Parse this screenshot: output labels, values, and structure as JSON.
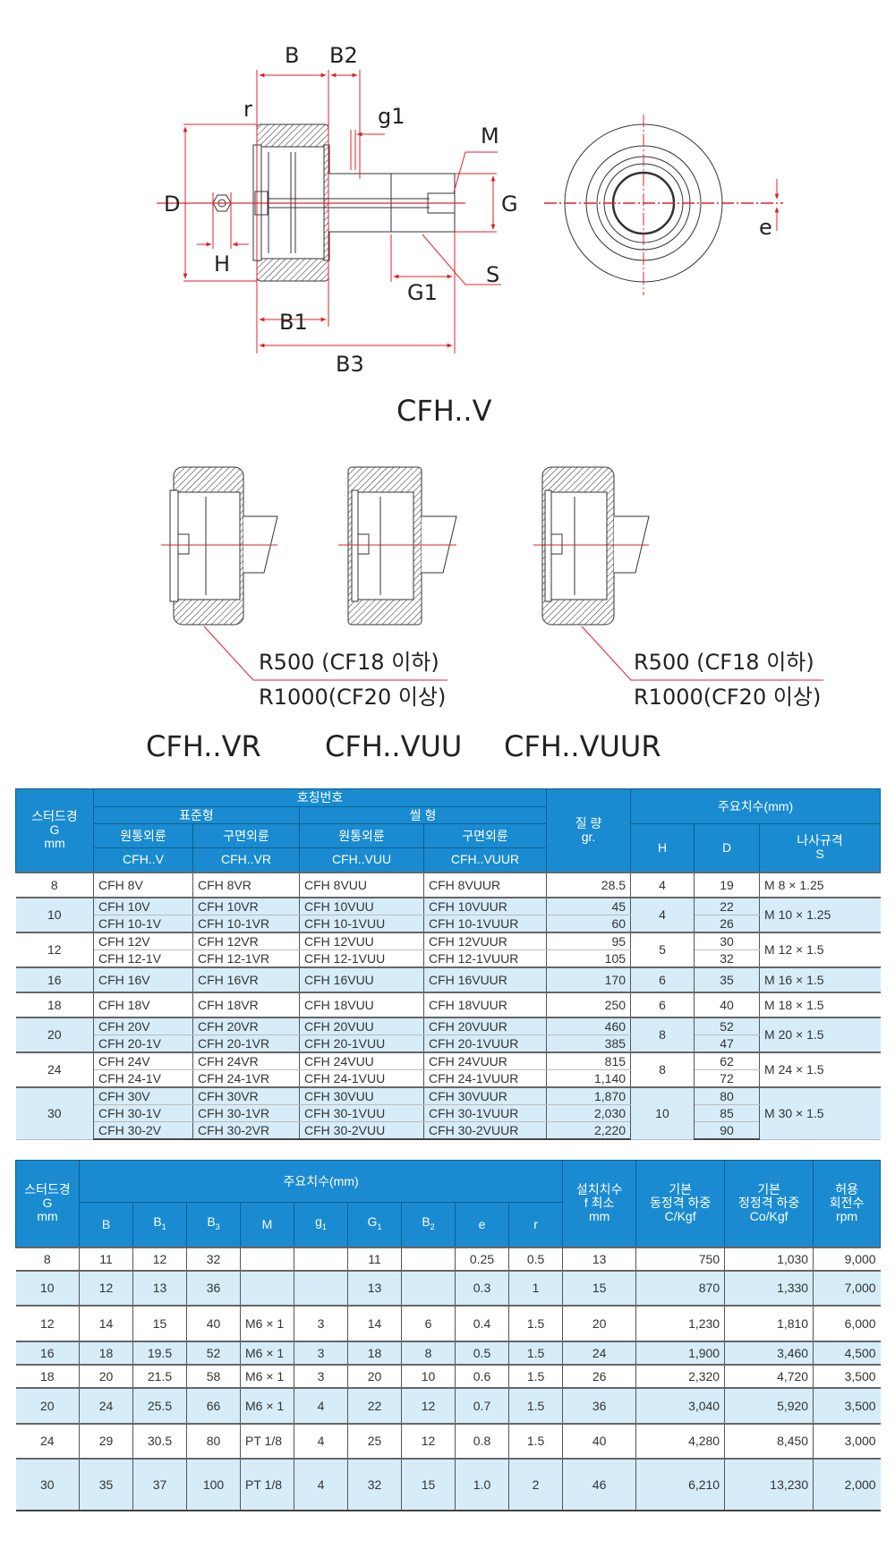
{
  "colors": {
    "header": "#1a8bd0",
    "row_alt": "#d6ecf9",
    "dimension": "#e0202a"
  },
  "diagram": {
    "labels": {
      "B": "B",
      "B2": "B2",
      "r": "r",
      "g1": "g1",
      "M": "M",
      "D": "D",
      "G": "G",
      "H": "H",
      "S": "S",
      "G1": "G1",
      "B1": "B1",
      "B3": "B3",
      "e": "e"
    },
    "title_main": "CFH..V",
    "radius_left_1": "R500  (CF18 이하)",
    "radius_left_2": "R1000(CF20 이상)",
    "radius_right_1": "R500  (CF18 이하)",
    "radius_right_2": "R1000(CF20 이상)",
    "title_vr": "CFH..VR",
    "title_vuu": "CFH..VUU",
    "title_vuur": "CFH..VUUR"
  },
  "table1": {
    "headers": {
      "stud": "스터드경\nG\nmm",
      "nominal": "호칭번호",
      "standard": "표준형",
      "sealed": "씰 형",
      "cyl1": "원통외륜",
      "sph1": "구면외륜",
      "cyl2": "원통외륜",
      "sph2": "구면외륜",
      "v": "CFH..V",
      "vr": "CFH..VR",
      "vuu": "CFH..VUU",
      "vuur": "CFH..VUUR",
      "mass": "질 량\ngr.",
      "dims": "주요치수(mm)",
      "H": "H",
      "D": "D",
      "S": "나사규격\nS"
    },
    "groups": [
      {
        "G": "8",
        "H": "4",
        "S": "M 8 × 1.25",
        "rows": [
          [
            "CFH  8V",
            "CFH  8VR",
            "CFH  8VUU",
            "CFH  8VUUR",
            "28.5",
            "19"
          ]
        ]
      },
      {
        "G": "10",
        "H": "4",
        "S": "M 10 × 1.25",
        "rows": [
          [
            "CFH  10V",
            "CFH  10VR",
            "CFH  10VUU",
            "CFH  10VUUR",
            "45",
            "22"
          ],
          [
            "CFH  10-1V",
            "CFH  10-1VR",
            "CFH  10-1VUU",
            "CFH  10-1VUUR",
            "60",
            "26"
          ]
        ]
      },
      {
        "G": "12",
        "H": "5",
        "S": "M 12 × 1.5",
        "rows": [
          [
            "CFH  12V",
            "CFH  12VR",
            "CFH  12VUU",
            "CFH  12VUUR",
            "95",
            "30"
          ],
          [
            "CFH  12-1V",
            "CFH  12-1VR",
            "CFH  12-1VUU",
            "CFH  12-1VUUR",
            "105",
            "32"
          ]
        ]
      },
      {
        "G": "16",
        "H": "6",
        "S": "M 16 × 1.5",
        "rows": [
          [
            "CFH  16V",
            "CFH  16VR",
            "CFH  16VUU",
            "CFH  16VUUR",
            "170",
            "35"
          ]
        ]
      },
      {
        "G": "18",
        "H": "6",
        "S": "M 18 × 1.5",
        "rows": [
          [
            "CFH  18V",
            "CFH  18VR",
            "CFH  18VUU",
            "CFH  18VUUR",
            "250",
            "40"
          ]
        ]
      },
      {
        "G": "20",
        "H": "8",
        "S": "M 20 × 1.5",
        "rows": [
          [
            "CFH  20V",
            "CFH  20VR",
            "CFH  20VUU",
            "CFH  20VUUR",
            "460",
            "52"
          ],
          [
            "CFH  20-1V",
            "CFH  20-1VR",
            "CFH  20-1VUU",
            "CFH  20-1VUUR",
            "385",
            "47"
          ]
        ]
      },
      {
        "G": "24",
        "H": "8",
        "S": "M 24 × 1.5",
        "rows": [
          [
            "CFH  24V",
            "CFH  24VR",
            "CFH  24VUU",
            "CFH  24VUUR",
            "815",
            "62"
          ],
          [
            "CFH  24-1V",
            "CFH  24-1VR",
            "CFH  24-1VUU",
            "CFH  24-1VUUR",
            "1,140",
            "72"
          ]
        ]
      },
      {
        "G": "30",
        "H": "10",
        "S": "M 30 × 1.5",
        "rows": [
          [
            "CFH  30V",
            "CFH  30VR",
            "CFH  30VUU",
            "CFH  30VUUR",
            "1,870",
            "80"
          ],
          [
            "CFH  30-1V",
            "CFH  30-1VR",
            "CFH  30-1VUU",
            "CFH  30-1VUUR",
            "2,030",
            "85"
          ],
          [
            "CFH  30-2V",
            "CFH  30-2VR",
            "CFH  30-2VUU",
            "CFH  30-2VUUR",
            "2,220",
            "90"
          ]
        ]
      }
    ]
  },
  "table2": {
    "headers": {
      "stud": "스터드경\nG\nmm",
      "dims": "주요치수(mm)",
      "cols": [
        "B",
        "B1",
        "B3",
        "M",
        "g1",
        "G1",
        "B2",
        "e",
        "r"
      ],
      "install": "설치치수\nf 최소\nmm",
      "dynamic": "기본\n동정격 하중\nC/Kgf",
      "static": "기본\n정정격 하중\nCo/Kgf",
      "speed": "허용\n회전수\nrpm"
    },
    "rows": [
      [
        "8",
        "11",
        "12",
        "32",
        "",
        "",
        "11",
        "",
        "0.25",
        "0.5",
        "13",
        "750",
        "1,030",
        "9,000"
      ],
      [
        "10",
        "12",
        "13",
        "36",
        "",
        "",
        "13",
        "",
        "0.3",
        "1",
        "15",
        "870",
        "1,330",
        "7,000"
      ],
      [
        "12",
        "14",
        "15",
        "40",
        "M6 × 1",
        "3",
        "14",
        "6",
        "0.4",
        "1.5",
        "20",
        "1,230",
        "1,810",
        "6,000"
      ],
      [
        "16",
        "18",
        "19.5",
        "52",
        "M6 × 1",
        "3",
        "18",
        "8",
        "0.5",
        "1.5",
        "24",
        "1,900",
        "3,460",
        "4,500"
      ],
      [
        "18",
        "20",
        "21.5",
        "58",
        "M6 × 1",
        "3",
        "20",
        "10",
        "0.6",
        "1.5",
        "26",
        "2,320",
        "4,720",
        "3,500"
      ],
      [
        "20",
        "24",
        "25.5",
        "66",
        "M6 × 1",
        "4",
        "22",
        "12",
        "0.7",
        "1.5",
        "36",
        "3,040",
        "5,920",
        "3,500"
      ],
      [
        "24",
        "29",
        "30.5",
        "80",
        "PT 1/8",
        "4",
        "25",
        "12",
        "0.8",
        "1.5",
        "40",
        "4,280",
        "8,450",
        "3,000"
      ],
      [
        "30",
        "35",
        "37",
        "100",
        "PT 1/8",
        "4",
        "32",
        "15",
        "1.0",
        "2",
        "46",
        "6,210",
        "13,230",
        "2,000"
      ]
    ]
  }
}
